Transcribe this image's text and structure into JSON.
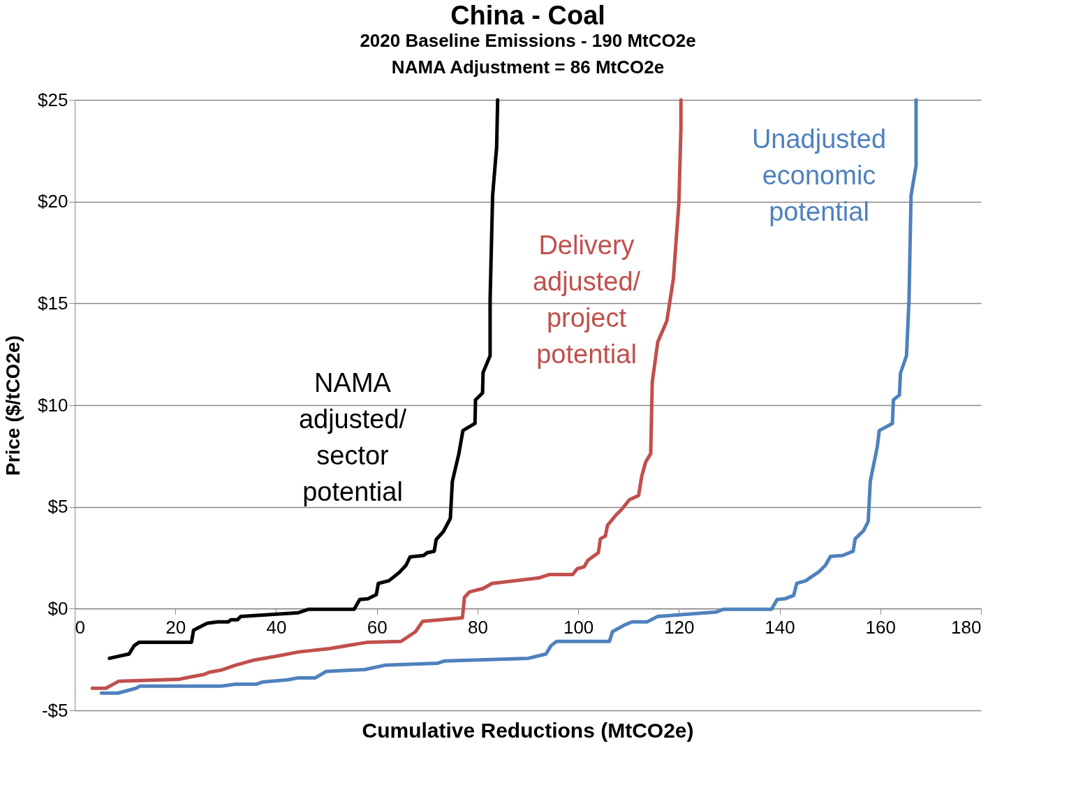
{
  "chart_data": {
    "type": "line",
    "title": "China - Coal",
    "subtitle": "2020 Baseline Emissions - 190 MtCO2e\nNAMA Adjustment = 86 MtCO2e",
    "xlabel": "Cumulative Reductions (MtCO2e)",
    "ylabel": "Price ($/tCO2e)",
    "xlim": [
      0,
      180
    ],
    "xticks": [
      0,
      20,
      40,
      60,
      80,
      100,
      120,
      140,
      160,
      180
    ],
    "ylim": [
      -5,
      25
    ],
    "yticks": [
      {
        "value": -5,
        "label": "-$5"
      },
      {
        "value": 0,
        "label": "$0"
      },
      {
        "value": 5,
        "label": "$5"
      },
      {
        "value": 10,
        "label": "$10"
      },
      {
        "value": 15,
        "label": "$15"
      },
      {
        "value": 20,
        "label": "$20"
      },
      {
        "value": 25,
        "label": "$25"
      }
    ],
    "grid": "y",
    "series": [
      {
        "name": "NAMA\nadjusted/\nsector\npotential",
        "color": "#000000",
        "x": [
          6.9,
          10.8,
          11.8,
          12.8,
          23.2,
          23.6,
          26.3,
          28.4,
          30.5,
          31,
          32.3,
          33,
          44.4,
          46.5,
          55.5,
          56.6,
          58.2,
          59.9,
          60.3,
          62.4,
          63.1,
          64.5,
          65.8,
          66.6,
          69.3,
          70,
          71.4,
          71.8,
          73.2,
          74.6,
          75,
          76.3,
          77.1,
          79.5,
          79.6,
          81,
          81.1,
          82.5,
          82.5,
          83,
          83.8,
          84
        ],
        "values": [
          -2.44,
          -2.23,
          -1.82,
          -1.65,
          -1.65,
          -1.06,
          -0.72,
          -0.65,
          -0.65,
          -0.55,
          -0.55,
          -0.38,
          -0.2,
          -0.03,
          -0.03,
          0.45,
          0.48,
          0.69,
          1.24,
          1.37,
          1.51,
          1.79,
          2.13,
          2.54,
          2.61,
          2.75,
          2.82,
          3.4,
          3.78,
          4.43,
          6.25,
          7.62,
          8.75,
          9.1,
          10.26,
          10.6,
          11.6,
          12.43,
          15.17,
          20.3,
          22.7,
          25
        ]
      },
      {
        "name": "Delivery\nadjusted/\nproject\npotential",
        "color": "#c0504d",
        "x": [
          3.5,
          6.2,
          8.7,
          20.8,
          22.9,
          25.7,
          26.8,
          29.1,
          31.9,
          35.4,
          40.2,
          44.4,
          50.6,
          58.2,
          64.8,
          67.7,
          69.1,
          77.0,
          77.4,
          78.4,
          81.1,
          82.9,
          92.2,
          94.3,
          98.9,
          99.8,
          101.2,
          101.9,
          104,
          104.4,
          105.4,
          105.8,
          107.5,
          108.6,
          110.2,
          112,
          112.6,
          113.4,
          114.4,
          114.7,
          115.8,
          117.6,
          118.9,
          120,
          120.4,
          120.4
        ],
        "values": [
          -3.91,
          -3.91,
          -3.57,
          -3.47,
          -3.36,
          -3.23,
          -3.12,
          -3.02,
          -2.78,
          -2.54,
          -2.33,
          -2.13,
          -1.96,
          -1.65,
          -1.61,
          -1.13,
          -0.62,
          -0.45,
          0.55,
          0.82,
          0.99,
          1.24,
          1.51,
          1.68,
          1.68,
          1.96,
          2.06,
          2.37,
          2.75,
          3.43,
          3.57,
          4.09,
          4.6,
          4.87,
          5.36,
          5.56,
          6.49,
          7.21,
          7.62,
          11.12,
          13.11,
          14.14,
          16.2,
          19.98,
          23.6,
          25
        ]
      },
      {
        "name": "Unadjusted\neconomic\npotential",
        "color": "#4f81bd",
        "x": [
          5.3,
          8.6,
          12.2,
          12.9,
          29.1,
          31.9,
          36.1,
          37.4,
          42.3,
          44.4,
          47.8,
          49.9,
          57.6,
          61.6,
          72.1,
          73.5,
          90.1,
          93.6,
          94.6,
          95.7,
          106.2,
          106.8,
          109.3,
          110.7,
          113.7,
          115.8,
          127.3,
          128.9,
          138.4,
          139.5,
          141,
          142.8,
          143.4,
          145.2,
          146.6,
          147.7,
          149.1,
          150.1,
          152.5,
          154.6,
          155,
          156.7,
          157.6,
          158,
          159.4,
          159.8,
          162.4,
          162.6,
          163.8,
          164,
          165.2,
          165.7,
          166.1,
          167.1,
          167.1
        ],
        "values": [
          -4.15,
          -4.15,
          -3.91,
          -3.81,
          -3.81,
          -3.71,
          -3.71,
          -3.6,
          -3.5,
          -3.4,
          -3.4,
          -3.09,
          -2.99,
          -2.78,
          -2.68,
          -2.57,
          -2.44,
          -2.23,
          -1.82,
          -1.61,
          -1.61,
          -1.13,
          -0.79,
          -0.65,
          -0.65,
          -0.38,
          -0.17,
          -0.03,
          -0.03,
          0.45,
          0.48,
          0.65,
          1.24,
          1.37,
          1.61,
          1.79,
          2.13,
          2.57,
          2.61,
          2.82,
          3.43,
          3.84,
          4.29,
          6.25,
          7.96,
          8.75,
          9.1,
          10.26,
          10.5,
          11.57,
          12.43,
          15.17,
          20.3,
          21.76,
          25
        ]
      }
    ]
  }
}
